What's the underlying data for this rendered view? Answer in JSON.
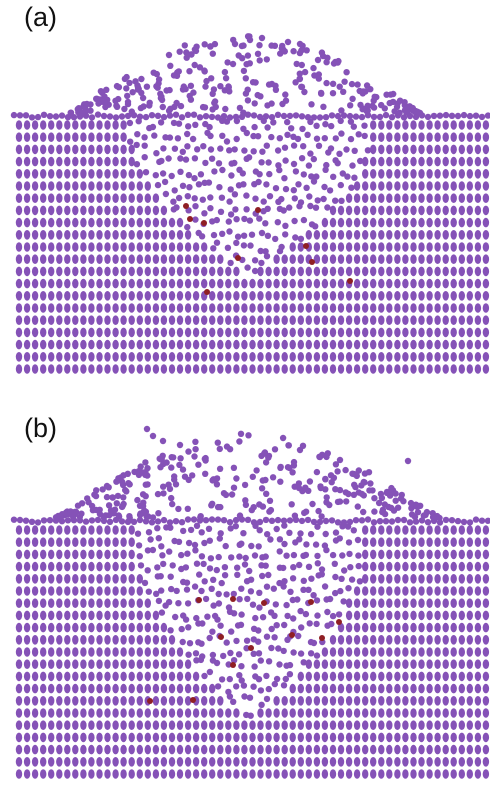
{
  "panels": [
    {
      "label": "(a)"
    },
    {
      "label": "(b)"
    }
  ],
  "colors": {
    "atom": "#8552b7",
    "defect": "#8f1f24",
    "background": "#ffffff"
  }
}
